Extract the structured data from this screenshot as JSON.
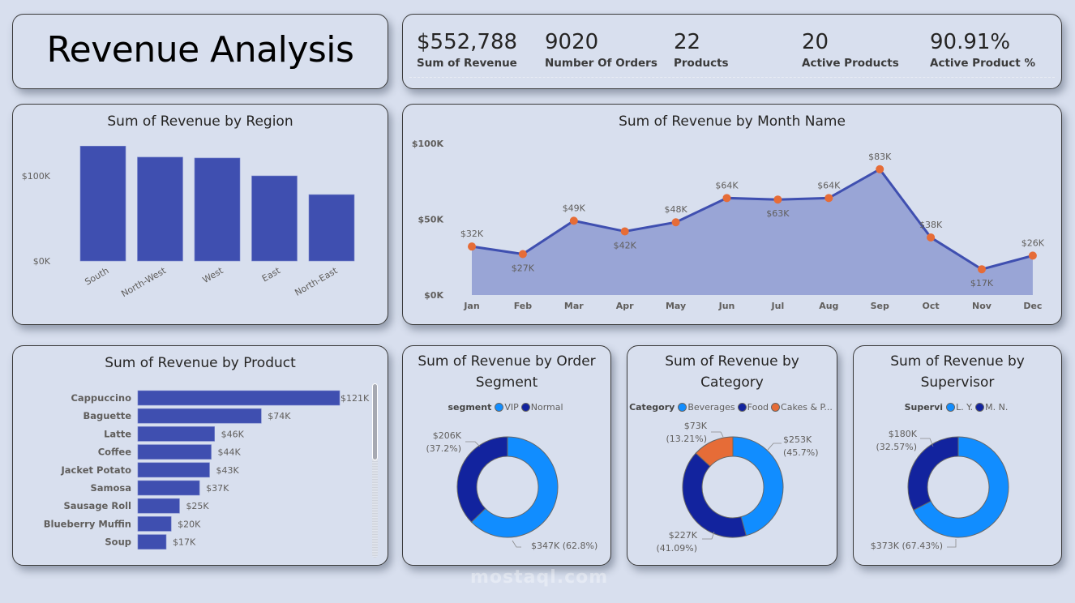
{
  "header": {
    "title": "Revenue Analysis"
  },
  "kpis": [
    {
      "value": "$552,788",
      "label": "Sum of Revenue"
    },
    {
      "value": "9020",
      "label": "Number Of Orders"
    },
    {
      "value": "22",
      "label": "Products"
    },
    {
      "value": "20",
      "label": "Active Products"
    },
    {
      "value": "90.91%",
      "label": "Active Product %"
    }
  ],
  "colors": {
    "bar": "#3f4fb0",
    "line": "#3f4fb0",
    "area": "#99a5d6",
    "marker": "#e66c37",
    "light_blue": "#118dff",
    "dark_blue": "#12239e",
    "orange": "#e66c37",
    "background": "#d8dfee"
  },
  "watermark": "mostaql.com",
  "chart_data": [
    {
      "id": "region",
      "type": "bar",
      "title": "Sum of Revenue by Region",
      "categories": [
        "South",
        "North-West",
        "West",
        "East",
        "North-East"
      ],
      "values": [
        135000,
        122000,
        121000,
        100000,
        78000
      ],
      "yticks": [
        0,
        100000
      ],
      "ytick_labels": [
        "$0K",
        "$100K"
      ],
      "ylim": [
        0,
        140000
      ],
      "xlabel": "",
      "ylabel": "",
      "grid": false
    },
    {
      "id": "month",
      "type": "area",
      "title": "Sum of Revenue by Month Name",
      "categories": [
        "Jan",
        "Feb",
        "Mar",
        "Apr",
        "May",
        "Jun",
        "Jul",
        "Aug",
        "Sep",
        "Oct",
        "Nov",
        "Dec"
      ],
      "values": [
        32000,
        27000,
        49000,
        42000,
        48000,
        64000,
        63000,
        64000,
        83000,
        38000,
        17000,
        26000
      ],
      "data_labels": [
        "$32K",
        "$27K",
        "$49K",
        "$42K",
        "$48K",
        "$64K",
        "$63K",
        "$64K",
        "$83K",
        "$38K",
        "$17K",
        "$26K"
      ],
      "label_below": [
        false,
        true,
        false,
        true,
        false,
        false,
        true,
        false,
        false,
        false,
        true,
        false
      ],
      "yticks": [
        0,
        50000,
        100000
      ],
      "ytick_labels": [
        "$0K",
        "$50K",
        "$100K"
      ],
      "ylim": [
        0,
        100000
      ],
      "xlabel": "",
      "ylabel": "",
      "grid": false
    },
    {
      "id": "product",
      "type": "bar",
      "orientation": "horizontal",
      "title": "Sum of Revenue by Product",
      "categories": [
        "Cappuccino",
        "Baguette",
        "Latte",
        "Coffee",
        "Jacket Potato",
        "Samosa",
        "Sausage Roll",
        "Blueberry Muffin",
        "Soup"
      ],
      "values": [
        121000,
        74000,
        46000,
        44000,
        43000,
        37000,
        25000,
        20000,
        17000
      ],
      "data_labels": [
        "$121K",
        "$74K",
        "$46K",
        "$44K",
        "$43K",
        "$37K",
        "$25K",
        "$20K",
        "$17K"
      ],
      "xlim": [
        0,
        121000
      ],
      "scroll_fraction_visible": 0.44
    },
    {
      "id": "segment",
      "type": "pie",
      "donut": true,
      "title": "Sum of Revenue by Order Segment",
      "legend_title": "segment",
      "labels": [
        "VIP",
        "Normal"
      ],
      "values": [
        347000,
        206000
      ],
      "percents": [
        62.8,
        37.2
      ],
      "slice_labels": [
        [
          "$347K (62.8%)"
        ],
        [
          "$206K",
          "(37.2%)"
        ]
      ],
      "colors": [
        "#118dff",
        "#12239e"
      ],
      "legend": "top"
    },
    {
      "id": "category",
      "type": "pie",
      "donut": true,
      "title": "Sum of Revenue by Category",
      "legend_title": "Category",
      "labels": [
        "Beverages",
        "Food",
        "Cakes & P..."
      ],
      "values": [
        253000,
        227000,
        73000
      ],
      "percents": [
        45.7,
        41.09,
        13.21
      ],
      "slice_labels": [
        [
          "$253K",
          "(45.7%)"
        ],
        [
          "$227K",
          "(41.09%)"
        ],
        [
          "$73K",
          "(13.21%)"
        ]
      ],
      "colors": [
        "#118dff",
        "#12239e",
        "#e66c37"
      ],
      "legend": "top"
    },
    {
      "id": "supervisor",
      "type": "pie",
      "donut": true,
      "title": "Sum of Revenue by Supervisor",
      "legend_title": "Supervi",
      "labels": [
        "L. Y.",
        "M. N."
      ],
      "values": [
        373000,
        180000
      ],
      "percents": [
        67.43,
        32.57
      ],
      "slice_labels": [
        [
          "$373K (67.43%)"
        ],
        [
          "$180K",
          "(32.57%)"
        ]
      ],
      "colors": [
        "#118dff",
        "#12239e"
      ],
      "legend": "top"
    }
  ],
  "titles": {
    "region": "Sum of Revenue by Region",
    "month": "Sum of Revenue by Month Name",
    "product": "Sum of Revenue by Product",
    "segment_l1": "Sum of Revenue by Order",
    "segment_l2": "Segment",
    "category_l1": "Sum of Revenue by",
    "category_l2": "Category",
    "supervisor_l1": "Sum of Revenue by",
    "supervisor_l2": "Supervisor"
  }
}
